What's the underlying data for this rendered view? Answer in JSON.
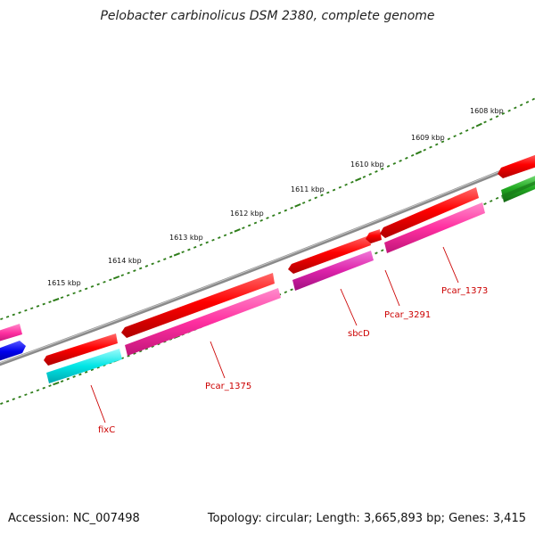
{
  "title": "Pelobacter carbinolicus DSM 2380, complete genome",
  "footer": {
    "accession": "Accession: NC_007498",
    "summary": "Topology: circular; Length: 3,665,893 bp; Genes: 3,415"
  },
  "scale": {
    "tick_color": "#2e7d1a",
    "labels": [
      "1608 kbp",
      "1609 kbp",
      "1610 kbp",
      "1611 kbp",
      "1612 kbp",
      "1613 kbp",
      "1614 kbp",
      "1615 kbp"
    ]
  },
  "backbone_color": "#808080",
  "genes": [
    {
      "id": "fixC",
      "label": "fixC",
      "color": "#00e5e5",
      "strand": "minus"
    },
    {
      "id": "Pcar_1375",
      "label": "Pcar_1375",
      "color": "#ff2fa0",
      "strand": "minus"
    },
    {
      "id": "sbcD",
      "label": "sbcD",
      "color": "#dd22aa",
      "strand": "minus"
    },
    {
      "id": "Pcar_3291",
      "label": "Pcar_3291",
      "color": "#ff0000",
      "strand": "plus"
    },
    {
      "id": "Pcar_1373",
      "label": "Pcar_1373",
      "color": "#ff2fa0",
      "strand": "minus"
    }
  ],
  "label_color": "#cc0000"
}
